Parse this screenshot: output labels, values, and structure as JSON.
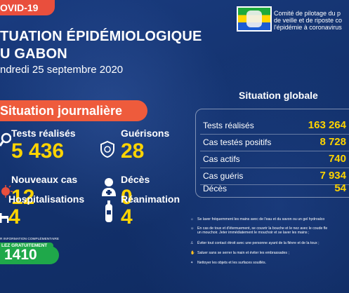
{
  "header": {
    "covid_tag": "OVID-19",
    "title_line1": "TUATION ÉPIDÉMIOLOGIQUE",
    "title_line2": "U GABON",
    "date": "ndredi 25 septembre 2020"
  },
  "committee": {
    "line1": "Comité de pilotage du p",
    "line2": "de veille et de riposte co",
    "line3": "l'épidémie à coronavirus"
  },
  "daily": {
    "banner": "Situation journalière",
    "tests_label": "Tests réalisés",
    "tests_value": "5 436",
    "recoveries_label": "Guérisons",
    "recoveries_value": "28",
    "new_cases_label": "Nouveaux cas",
    "new_cases_value": "12",
    "deaths_label": "Décès",
    "deaths_value": "0",
    "hosp_label": "Hospitalisations",
    "hosp_value": "4",
    "icu_label": "Réanimation",
    "icu_value": "4"
  },
  "global": {
    "title": "Situation globale",
    "rows": [
      {
        "label": "Tests réalisés",
        "value": "163 264"
      },
      {
        "label": "Cas testés positifs",
        "value": "8 728"
      },
      {
        "label": "Cas actifs",
        "value": "740"
      },
      {
        "label": "Cas guéris",
        "value": "7 934"
      },
      {
        "label": "Décès",
        "value": "54"
      }
    ]
  },
  "advice": [
    "Se laver fréquemment les mains avec de l'eau et du savon ou un gel hydroalco",
    "En cas de toux et d'éternuement, se couvrir la bouche et le nez avec le coude fle",
    "un mouchoir. Jeter immédiatement le mouchoir et se laver les mains ;",
    "Éviter tout contact étroit avec une personne ayant de la fièvre et de la toux ;",
    "Saluer sans se serrer la main et éviter les embrassades ;",
    "Nettoyer les objets et les surfaces souillés."
  ],
  "info": {
    "small": "R INFORMATION COMPLÉMENTAIRE",
    "free": "LEZ GRATUITEMENT",
    "phone": "1410"
  },
  "colors": {
    "background": "#15336f",
    "accent_orange": "#ee5b3c",
    "value_yellow": "#ffd400",
    "green": "#1fa84a"
  }
}
